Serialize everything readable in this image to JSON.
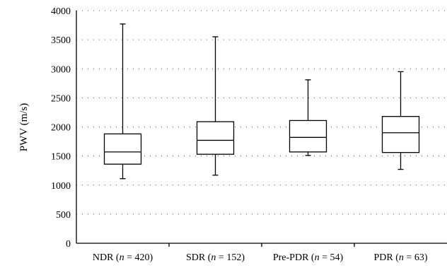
{
  "chart_data": {
    "type": "boxplot",
    "ylabel": "PWV (m/s)",
    "ylim": [
      0,
      4000
    ],
    "y_ticks": [
      "0",
      "500",
      "1000",
      "1500",
      "2000",
      "2500",
      "3000",
      "3500",
      "4000"
    ],
    "grid": true,
    "categories": [
      {
        "prefix": "NDR (",
        "italic": "n",
        "suffix": " = 420)"
      },
      {
        "prefix": "SDR (",
        "italic": "n",
        "suffix": " = 152)"
      },
      {
        "prefix": "Pre-PDR (",
        "italic": "n",
        "suffix": " = 54)"
      },
      {
        "prefix": "PDR (",
        "italic": "n",
        "suffix": " = 63)"
      }
    ],
    "boxes": [
      {
        "min": 1110,
        "q1": 1360,
        "median": 1570,
        "q3": 1880,
        "max": 3770
      },
      {
        "min": 1170,
        "q1": 1530,
        "median": 1770,
        "q3": 2090,
        "max": 3550
      },
      {
        "min": 1510,
        "q1": 1570,
        "median": 1820,
        "q3": 2110,
        "max": 2810
      },
      {
        "min": 1270,
        "q1": 1560,
        "median": 1900,
        "q3": 2180,
        "max": 2950
      }
    ]
  }
}
